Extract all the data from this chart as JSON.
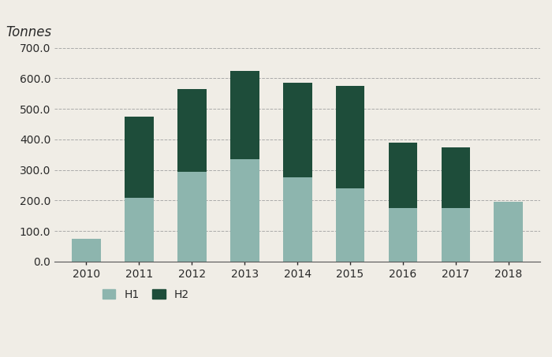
{
  "years": [
    "2010",
    "2011",
    "2012",
    "2013",
    "2014",
    "2015",
    "2016",
    "2017",
    "2018"
  ],
  "h1_values": [
    75,
    210,
    295,
    335,
    275,
    240,
    175,
    175,
    195
  ],
  "h2_values": [
    0,
    265,
    270,
    290,
    310,
    335,
    215,
    200,
    0
  ],
  "h1_color": "#8db5ae",
  "h2_color": "#1e4d3a",
  "ylabel": "Tonnes",
  "ylim": [
    0,
    700
  ],
  "yticks": [
    0.0,
    100.0,
    200.0,
    300.0,
    400.0,
    500.0,
    600.0,
    700.0
  ],
  "legend_h1": "H1",
  "legend_h2": "H2",
  "background_color": "#f0ede6",
  "text_color": "#2a2a2a",
  "grid_color": "#aaaaaa",
  "axis_color": "#555555",
  "title_fontsize": 12,
  "tick_fontsize": 10
}
